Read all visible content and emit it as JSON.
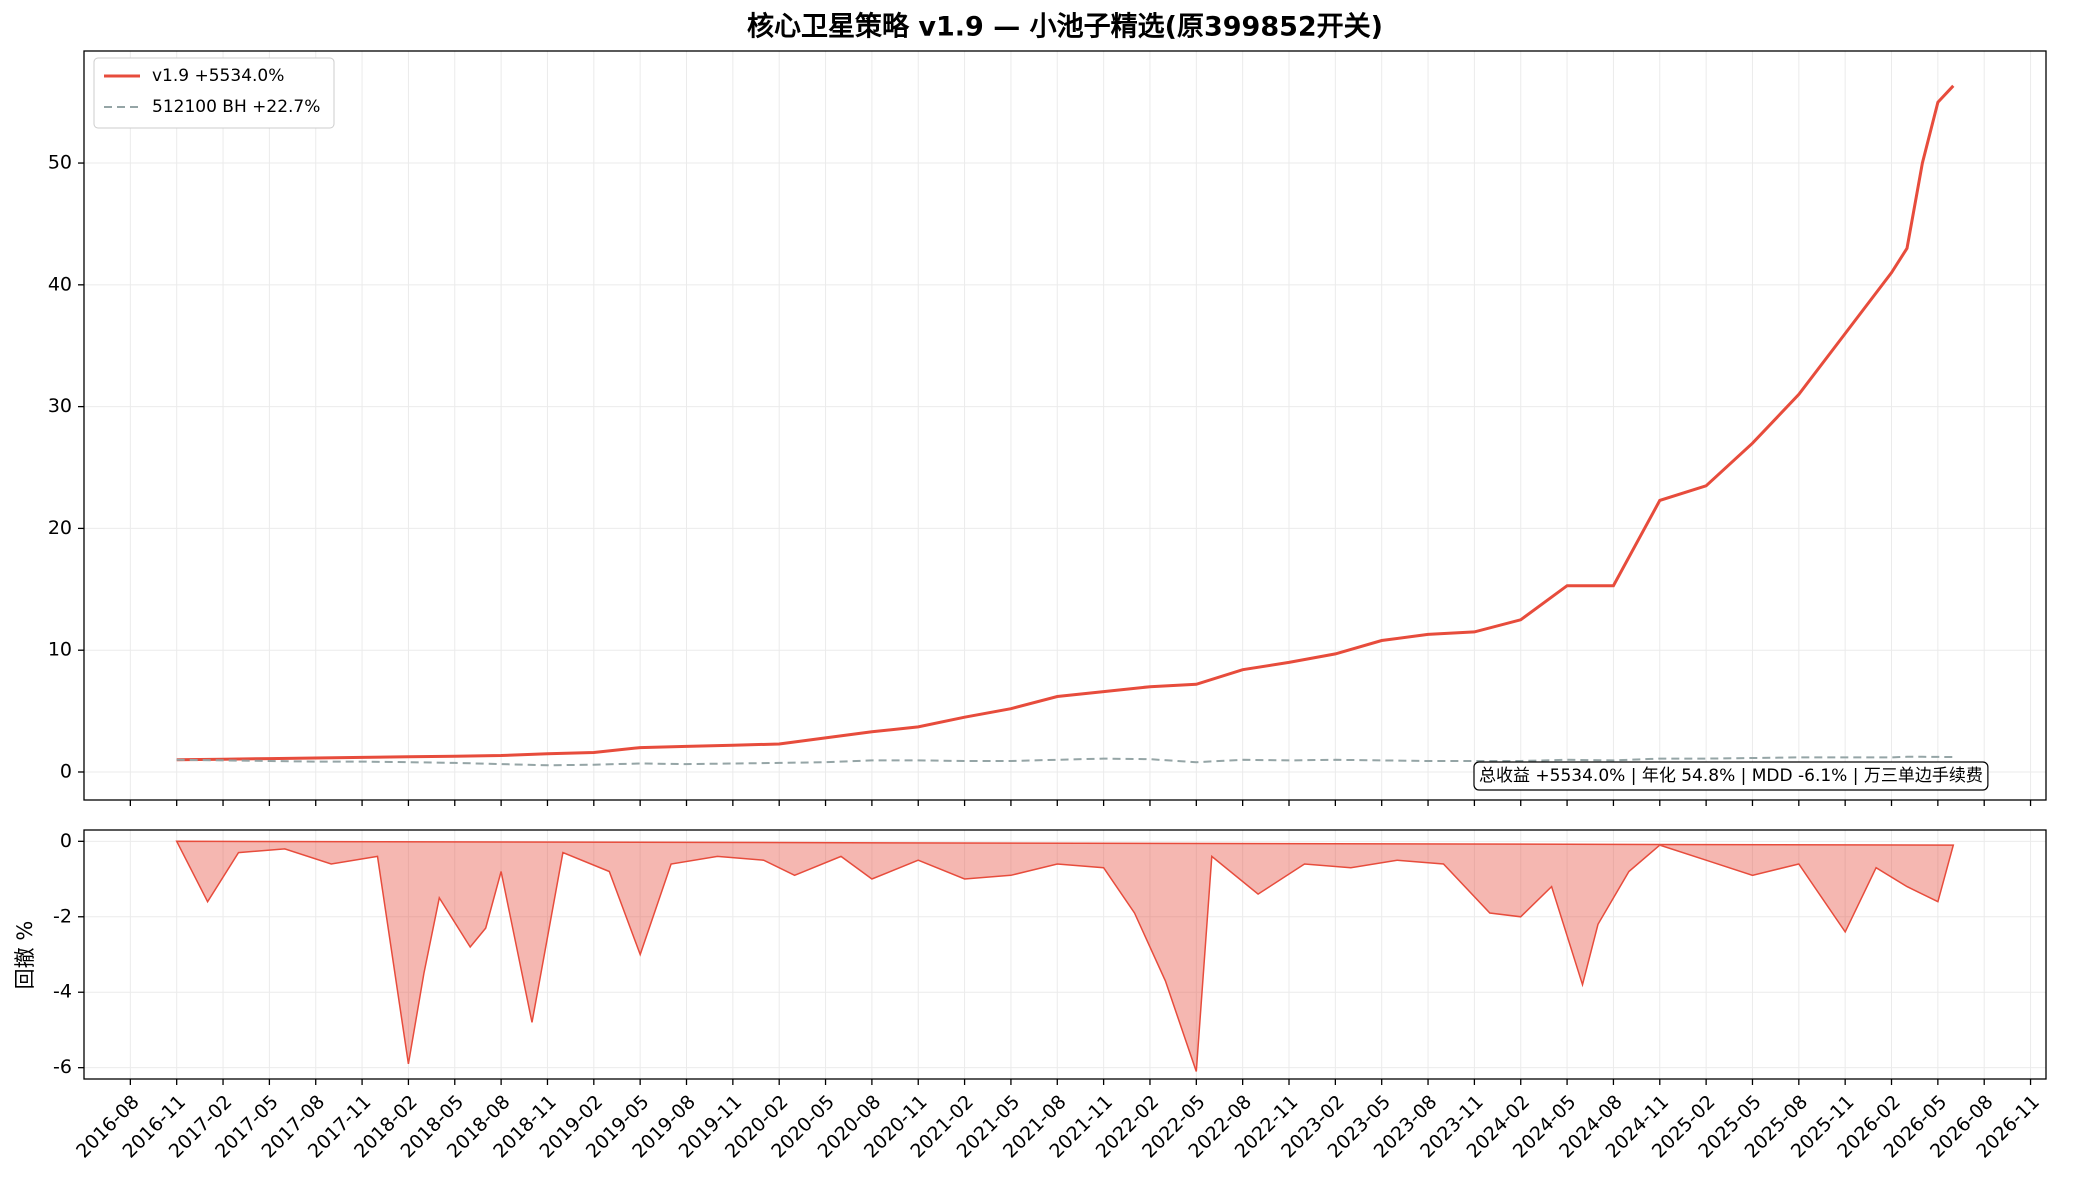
{
  "chart_data": [
    {
      "type": "line",
      "title": "核心卫星策略 v1.9 — 小池子精选(原399852开关)",
      "x": [
        "2016-11",
        "2017-02",
        "2017-05",
        "2017-08",
        "2017-11",
        "2018-02",
        "2018-05",
        "2018-08",
        "2018-11",
        "2019-02",
        "2019-05",
        "2019-08",
        "2019-11",
        "2020-02",
        "2020-05",
        "2020-08",
        "2020-11",
        "2021-02",
        "2021-05",
        "2021-08",
        "2021-11",
        "2022-02",
        "2022-05",
        "2022-08",
        "2022-11",
        "2023-02",
        "2023-05",
        "2023-08",
        "2023-11",
        "2024-02",
        "2024-05",
        "2024-08",
        "2024-11",
        "2025-02",
        "2025-05",
        "2025-08",
        "2025-11",
        "2026-02",
        "2026-03",
        "2026-04",
        "2026-05",
        "2026-06"
      ],
      "series": [
        {
          "name": "v1.9 +5534.0%",
          "color": "#e74c3c",
          "dash": false,
          "values": [
            1.0,
            1.05,
            1.1,
            1.15,
            1.2,
            1.25,
            1.3,
            1.35,
            1.5,
            1.6,
            2.0,
            2.1,
            2.2,
            2.3,
            2.8,
            3.3,
            3.7,
            4.5,
            5.2,
            6.2,
            6.6,
            7.0,
            7.2,
            8.4,
            9.0,
            9.7,
            10.8,
            11.3,
            11.5,
            12.5,
            15.3,
            15.3,
            22.3,
            23.5,
            27.0,
            31.0,
            36.0,
            41.0,
            43.0,
            50.0,
            55.0,
            56.34
          ]
        },
        {
          "name": "512100 BH +22.7%",
          "color": "#95a5a6",
          "dash": true,
          "values": [
            1.0,
            0.95,
            0.9,
            0.85,
            0.85,
            0.8,
            0.75,
            0.65,
            0.55,
            0.6,
            0.7,
            0.65,
            0.7,
            0.75,
            0.8,
            0.95,
            0.95,
            0.9,
            0.9,
            1.0,
            1.1,
            1.05,
            0.8,
            1.0,
            0.95,
            1.0,
            0.95,
            0.9,
            0.9,
            0.9,
            1.0,
            0.95,
            1.1,
            1.1,
            1.15,
            1.2,
            1.2,
            1.2,
            1.25,
            1.25,
            1.24,
            1.227
          ]
        }
      ],
      "annotation": "总收益 +5534.0% | 年化 54.8% | MDD -6.1% | 万三单边手续费",
      "xlim": [
        "2016-05",
        "2026-12"
      ],
      "ylim": [
        -2.3,
        59.2
      ],
      "yticks": [
        0,
        10,
        20,
        30,
        40,
        50
      ],
      "grid": true,
      "legend": "upper left"
    },
    {
      "type": "area",
      "ylabel": "回撤 %",
      "x": [
        "2016-11",
        "2017-01",
        "2017-03",
        "2017-06",
        "2017-09",
        "2017-12",
        "2018-02",
        "2018-03",
        "2018-04",
        "2018-06",
        "2018-07",
        "2018-08",
        "2018-10",
        "2018-12",
        "2019-03",
        "2019-05",
        "2019-07",
        "2019-10",
        "2020-01",
        "2020-03",
        "2020-06",
        "2020-08",
        "2020-11",
        "2021-02",
        "2021-05",
        "2021-08",
        "2021-11",
        "2022-01",
        "2022-03",
        "2022-05",
        "2022-06",
        "2022-09",
        "2022-12",
        "2023-03",
        "2023-06",
        "2023-09",
        "2023-12",
        "2024-02",
        "2024-04",
        "2024-06",
        "2024-07",
        "2024-09",
        "2024-11",
        "2025-02",
        "2025-05",
        "2025-08",
        "2025-11",
        "2026-01",
        "2026-03",
        "2026-05",
        "2026-06"
      ],
      "values": [
        0,
        -1.6,
        -0.3,
        -0.2,
        -0.6,
        -0.4,
        -5.9,
        -3.5,
        -1.5,
        -2.8,
        -2.3,
        -0.8,
        -4.8,
        -0.3,
        -0.8,
        -3.0,
        -0.6,
        -0.4,
        -0.5,
        -0.9,
        -0.4,
        -1.0,
        -0.5,
        -1.0,
        -0.9,
        -0.6,
        -0.7,
        -1.9,
        -3.7,
        -6.1,
        -0.4,
        -1.4,
        -0.6,
        -0.7,
        -0.5,
        -0.6,
        -1.9,
        -2.0,
        -1.2,
        -3.8,
        -2.2,
        -0.8,
        -0.1,
        -0.5,
        -0.9,
        -0.6,
        -2.4,
        -0.7,
        -1.2,
        -1.6,
        -0.1
      ],
      "color": "#e74c3c",
      "xlim": [
        "2016-05",
        "2026-12"
      ],
      "ylim": [
        -6.3,
        0.3
      ],
      "yticks": [
        0,
        -2,
        -4,
        -6
      ],
      "xticks": [
        "2016-08",
        "2016-11",
        "2017-02",
        "2017-05",
        "2017-08",
        "2017-11",
        "2018-02",
        "2018-05",
        "2018-08",
        "2018-11",
        "2019-02",
        "2019-05",
        "2019-08",
        "2019-11",
        "2020-02",
        "2020-05",
        "2020-08",
        "2020-11",
        "2021-02",
        "2021-05",
        "2021-08",
        "2021-11",
        "2022-02",
        "2022-05",
        "2022-08",
        "2022-11",
        "2023-02",
        "2023-05",
        "2023-08",
        "2023-11",
        "2024-02",
        "2024-05",
        "2024-08",
        "2024-11",
        "2025-02",
        "2025-05",
        "2025-08",
        "2025-11",
        "2026-02",
        "2026-05",
        "2026-08",
        "2026-11"
      ],
      "grid": true
    }
  ]
}
